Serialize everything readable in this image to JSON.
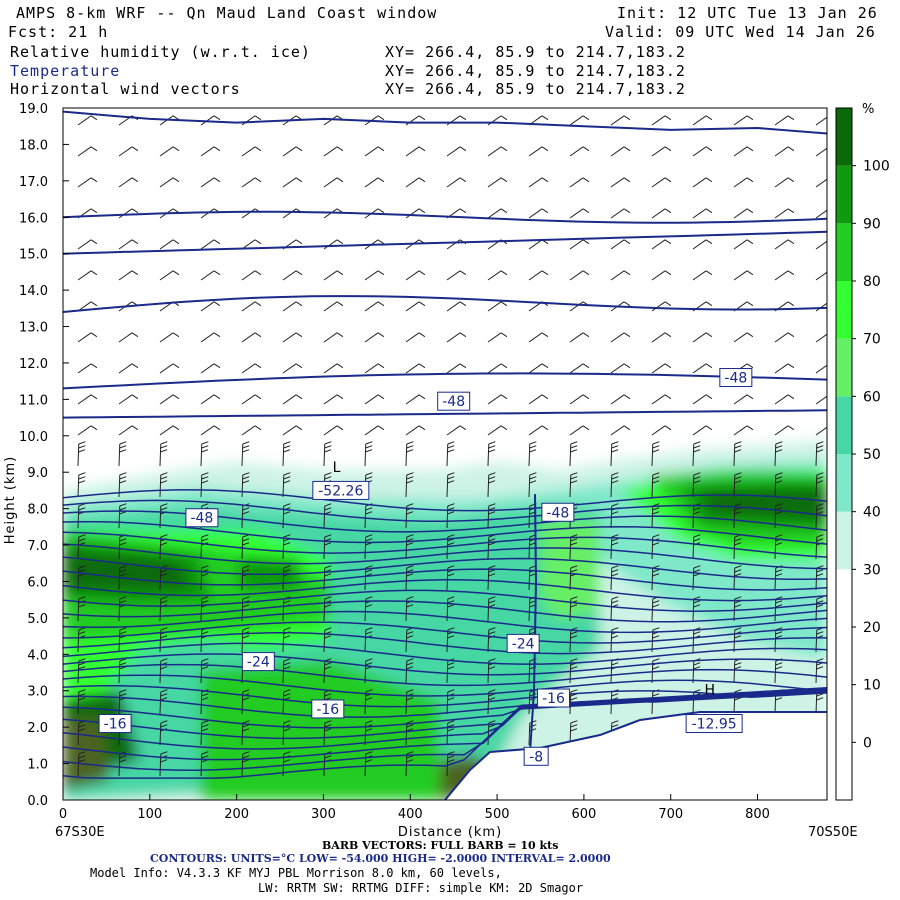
{
  "header": {
    "title": "AMPS 8-km WRF -- Qn Maud Land Coast window",
    "init": "Init: 12 UTC Tue 13 Jan 26",
    "fcst": "Fcst:   21 h",
    "valid": "Valid: 09 UTC Wed 14 Jan 26",
    "fields": [
      {
        "name": "Relative humidity (w.r.t. ice)",
        "xy": "XY= 266.4, 85.9 to 214.7,183.2",
        "color": "#000000"
      },
      {
        "name": "Temperature",
        "xy": "XY= 266.4, 85.9 to 214.7,183.2",
        "color": "#1a2a8a"
      },
      {
        "name": "Horizontal wind vectors",
        "xy": "XY= 266.4, 85.9 to 214.7,183.2",
        "color": "#000000"
      }
    ]
  },
  "chart_data": {
    "type": "heatmap",
    "title": "AMPS 8-km WRF cross section - Relative humidity (w.r.t. ice), Temperature, Horizontal wind vectors",
    "xlabel": "Distance (km)",
    "ylabel": "Height (km)",
    "xlim": [
      0,
      880
    ],
    "ylim": [
      0,
      19
    ],
    "x_ticks": [
      "0",
      "100",
      "200",
      "300",
      "400",
      "500",
      "600",
      "700",
      "800"
    ],
    "y_ticks": [
      "0.0",
      "1.0",
      "2.0",
      "3.0",
      "4.0",
      "5.0",
      "6.0",
      "7.0",
      "8.0",
      "9.0",
      "10.0",
      "11.0",
      "12.0",
      "13.0",
      "14.0",
      "15.0",
      "16.0",
      "17.0",
      "18.0",
      "19.0"
    ],
    "x_endpoints": {
      "left": "67S30E",
      "right": "70S50E"
    },
    "colorbar": {
      "unit": "%",
      "labels": [
        "0",
        "10",
        "20",
        "30",
        "40",
        "50",
        "60",
        "70",
        "80",
        "90",
        "100"
      ],
      "levels": [
        -10,
        0,
        10,
        20,
        30,
        40,
        50,
        60,
        70,
        80,
        90,
        100,
        110
      ],
      "colors": [
        "#ffffff",
        "#ffffff",
        "#ffffff",
        "#ffffff",
        "#cdf3e6",
        "#7ee8c9",
        "#46d7a5",
        "#66ee66",
        "#33ff33",
        "#22cc22",
        "#119911",
        "#0a6a0a",
        "#4e6422"
      ]
    },
    "contour_labels": [
      {
        "text": "-48",
        "x": 450,
        "y": 10.95
      },
      {
        "text": "-48",
        "x": 775,
        "y": 11.6
      },
      {
        "text": "-48",
        "x": 160,
        "y": 7.75
      },
      {
        "text": "-48",
        "x": 570,
        "y": 7.9
      },
      {
        "text": "-52.26",
        "x": 320,
        "y": 8.5
      },
      {
        "text": "-24",
        "x": 225,
        "y": 3.8
      },
      {
        "text": "-24",
        "x": 530,
        "y": 4.3
      },
      {
        "text": "-16",
        "x": 305,
        "y": 2.5
      },
      {
        "text": "-16",
        "x": 565,
        "y": 2.8
      },
      {
        "text": "-16",
        "x": 60,
        "y": 2.1
      },
      {
        "text": "-8",
        "x": 545,
        "y": 1.2
      },
      {
        "text": "-12.95",
        "x": 750,
        "y": 2.1
      }
    ],
    "extrema_markers": [
      {
        "text": "L",
        "x": 315,
        "y": 9.0
      },
      {
        "text": "H",
        "x": 745,
        "y": 2.9
      }
    ],
    "series": [
      {
        "name": "Temperature contour (upper)",
        "x": [
          0,
          100,
          200,
          300,
          400,
          500,
          600,
          700,
          800,
          880
        ],
        "y": [
          18.9,
          18.7,
          18.6,
          18.7,
          18.6,
          18.6,
          18.5,
          18.4,
          18.45,
          18.3
        ]
      }
    ]
  },
  "footer": {
    "barb": "BARB VECTORS:  FULL BARB = 10 kts",
    "contours": "CONTOURS:  UNITS=°C  LOW= -54.000       HIGH= -2.0000       INTERVAL=   2.0000",
    "model1": "Model Info: V4.3.3   KF     MYJ PBL  Morrison            8.0 km,  60 levels,",
    "model2": "LW: RRTM SW: RRTMG   DIFF: simple KM: 2D Smagor"
  }
}
